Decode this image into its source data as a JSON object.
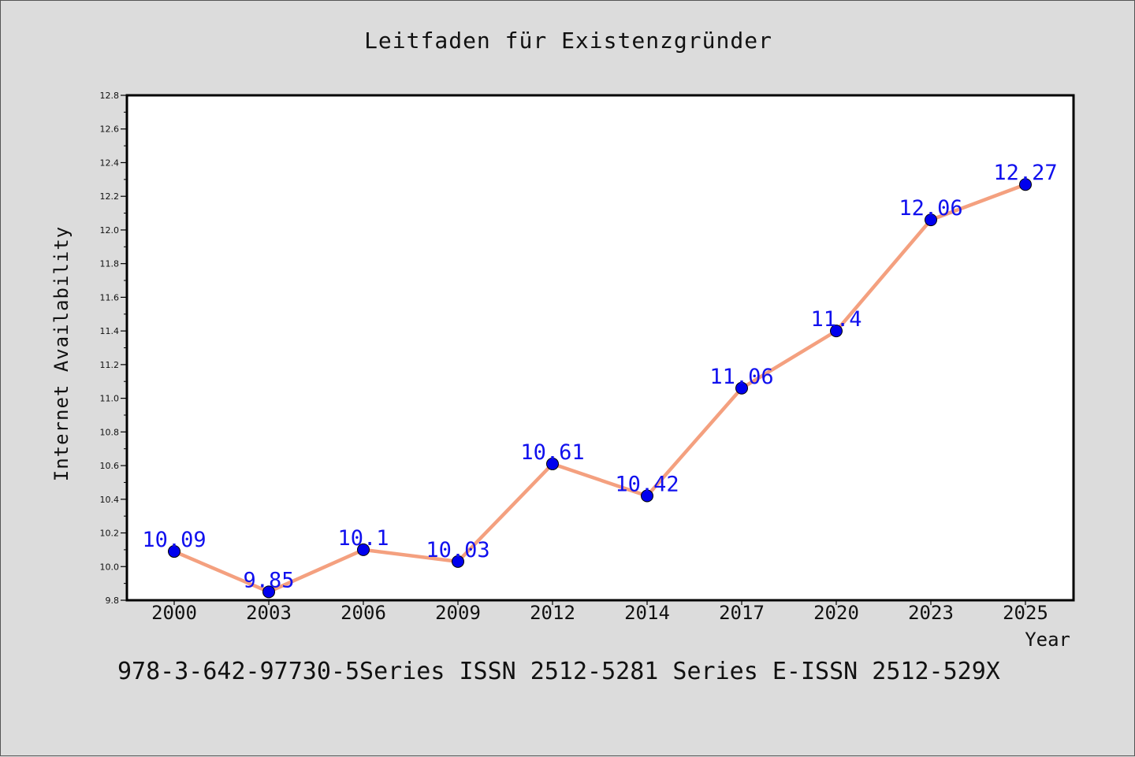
{
  "chart_data": {
    "type": "line",
    "title": "Leitfaden für Existenzgründer",
    "xlabel": "Year",
    "ylabel": "Internet Availability",
    "categories": [
      "2000",
      "2003",
      "2006",
      "2009",
      "2012",
      "2014",
      "2017",
      "2020",
      "2023",
      "2025"
    ],
    "series": [
      {
        "values": [
          10.09,
          9.85,
          10.1,
          10.03,
          10.61,
          10.42,
          11.06,
          11.4,
          12.06,
          12.27
        ],
        "data_labels": [
          "10.09",
          "9.85",
          "10.1",
          "10.03",
          "10.61",
          "10.42",
          "11.06",
          "11.4",
          "12.06",
          "12.27"
        ],
        "line_color": "#f4a07f",
        "marker_color": "#0000ee"
      }
    ],
    "ylim": [
      9.8,
      12.8
    ],
    "yticks": [
      "9.8",
      "10.0",
      "10.2",
      "10.4",
      "10.6",
      "10.8",
      "11.0",
      "11.2",
      "11.4",
      "11.6",
      "11.8",
      "12.0",
      "12.2",
      "12.4",
      "12.6",
      "12.8"
    ],
    "grid": false,
    "legend": "none",
    "background_color": "#dcdcdc",
    "plot_background_color": "#ffffff"
  },
  "footer": {
    "text": "978-3-642-97730-5Series ISSN 2512-5281 Series E-ISSN 2512-529X"
  }
}
